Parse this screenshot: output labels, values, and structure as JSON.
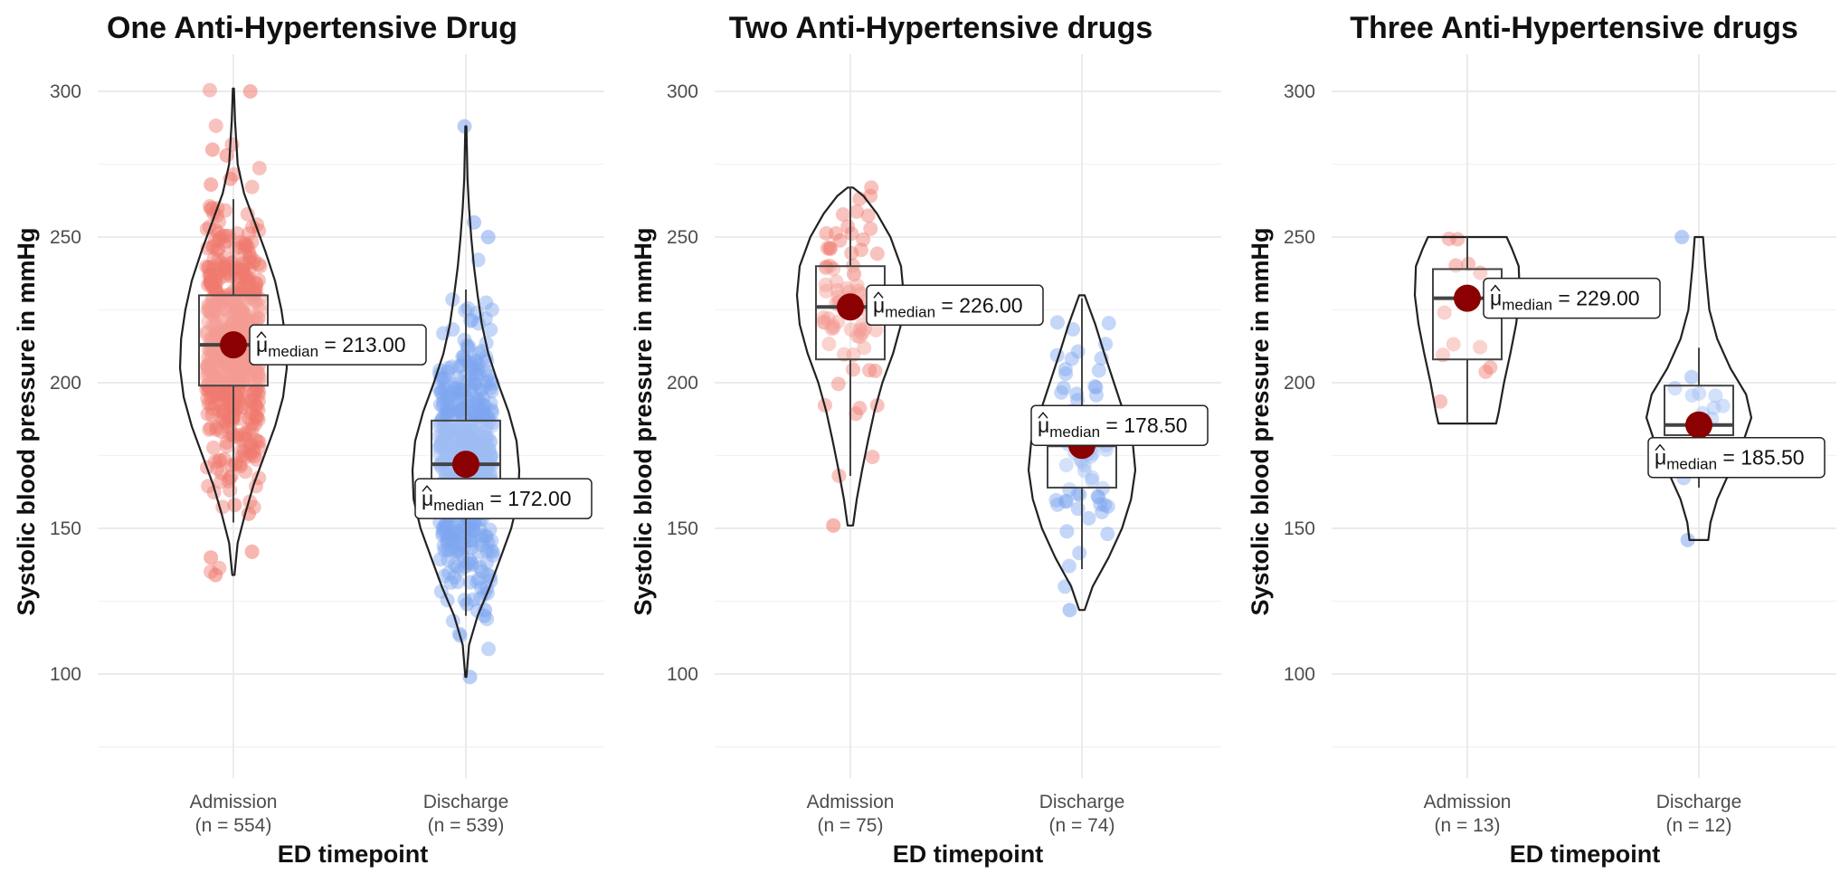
{
  "chart_data": [
    {
      "type": "violin-box-scatter",
      "title": "One Anti-Hypertensive Drug",
      "xlabel": "ED timepoint",
      "ylabel": "Systolic blood pressure in mmHg",
      "ylim": [
        75,
        310
      ],
      "yticks": [
        100,
        150,
        200,
        250,
        300
      ],
      "grid": true,
      "groups": [
        {
          "name": "Admission",
          "n_label": "(n = 554)",
          "color": "#F07A6E",
          "median": 213,
          "q1": 199,
          "q3": 230,
          "wlo": 152,
          "whi": 263,
          "min": 134,
          "max": 301,
          "violin": [
            [
              134,
              0.02
            ],
            [
              145,
              0.08
            ],
            [
              155,
              0.22
            ],
            [
              165,
              0.38
            ],
            [
              175,
              0.58
            ],
            [
              185,
              0.78
            ],
            [
              195,
              0.93
            ],
            [
              205,
              1.0
            ],
            [
              215,
              0.98
            ],
            [
              225,
              0.9
            ],
            [
              235,
              0.78
            ],
            [
              245,
              0.6
            ],
            [
              255,
              0.4
            ],
            [
              265,
              0.2
            ],
            [
              275,
              0.08
            ],
            [
              290,
              0.03
            ],
            [
              301,
              0.01
            ]
          ],
          "outliers": [
            134,
            140,
            142,
            155,
            158,
            268,
            270,
            278,
            280,
            300
          ],
          "label_stat": "= 213.00"
        },
        {
          "name": "Discharge",
          "n_label": "(n = 539)",
          "color": "#7EA6F0",
          "median": 172,
          "q1": 157,
          "q3": 187,
          "wlo": 120,
          "whi": 232,
          "min": 99,
          "max": 288,
          "violin": [
            [
              99,
              0.01
            ],
            [
              110,
              0.06
            ],
            [
              120,
              0.22
            ],
            [
              130,
              0.45
            ],
            [
              140,
              0.65
            ],
            [
              150,
              0.85
            ],
            [
              160,
              0.98
            ],
            [
              170,
              1.0
            ],
            [
              180,
              0.95
            ],
            [
              190,
              0.8
            ],
            [
              200,
              0.6
            ],
            [
              210,
              0.42
            ],
            [
              220,
              0.3
            ],
            [
              230,
              0.22
            ],
            [
              240,
              0.15
            ],
            [
              250,
              0.1
            ],
            [
              260,
              0.06
            ],
            [
              270,
              0.03
            ],
            [
              288,
              0.01
            ]
          ],
          "outliers": [
            99,
            120,
            122,
            124,
            250,
            255,
            288
          ],
          "label_stat": "= 172.00"
        }
      ]
    },
    {
      "type": "violin-box-scatter",
      "title": "Two Anti-Hypertensive drugs",
      "xlabel": "ED timepoint",
      "ylabel": "Systolic blood pressure in mmHg",
      "ylim": [
        75,
        310
      ],
      "yticks": [
        100,
        150,
        200,
        250,
        300
      ],
      "grid": true,
      "groups": [
        {
          "name": "Admission",
          "n_label": "(n = 75)",
          "color": "#F07A6E",
          "median": 226,
          "q1": 208,
          "q3": 240,
          "wlo": 168,
          "whi": 267,
          "min": 151,
          "max": 267,
          "violin": [
            [
              151,
              0.05
            ],
            [
              160,
              0.12
            ],
            [
              170,
              0.22
            ],
            [
              180,
              0.33
            ],
            [
              190,
              0.45
            ],
            [
              200,
              0.6
            ],
            [
              210,
              0.8
            ],
            [
              220,
              0.95
            ],
            [
              230,
              1.0
            ],
            [
              240,
              0.95
            ],
            [
              250,
              0.75
            ],
            [
              258,
              0.5
            ],
            [
              264,
              0.25
            ],
            [
              267,
              0.05
            ]
          ],
          "outliers": [
            151
          ],
          "label_stat": "= 226.00"
        },
        {
          "name": "Discharge",
          "n_label": "(n = 74)",
          "color": "#7EA6F0",
          "median": 178.5,
          "q1": 164,
          "q3": 189,
          "wlo": 136,
          "whi": 229,
          "min": 122,
          "max": 230,
          "violin": [
            [
              122,
              0.05
            ],
            [
              130,
              0.2
            ],
            [
              140,
              0.5
            ],
            [
              150,
              0.75
            ],
            [
              160,
              0.92
            ],
            [
              170,
              1.0
            ],
            [
              180,
              0.95
            ],
            [
              190,
              0.78
            ],
            [
              200,
              0.6
            ],
            [
              210,
              0.42
            ],
            [
              220,
              0.25
            ],
            [
              230,
              0.05
            ]
          ],
          "outliers": [
            122
          ],
          "label_stat": "= 178.50"
        }
      ]
    },
    {
      "type": "violin-box-scatter",
      "title": "Three Anti-Hypertensive drugs",
      "xlabel": "ED timepoint",
      "ylabel": "Systolic blood pressure in mmHg",
      "ylim": [
        75,
        310
      ],
      "yticks": [
        100,
        150,
        200,
        250,
        300
      ],
      "grid": true,
      "groups": [
        {
          "name": "Admission",
          "n_label": "(n = 13)",
          "color": "#F07A6E",
          "median": 229,
          "q1": 208,
          "q3": 239,
          "wlo": 186,
          "whi": 250,
          "min": 186,
          "max": 250,
          "violin": [
            [
              186,
              0.55
            ],
            [
              190,
              0.6
            ],
            [
              200,
              0.7
            ],
            [
              210,
              0.82
            ],
            [
              220,
              0.93
            ],
            [
              230,
              1.0
            ],
            [
              240,
              0.98
            ],
            [
              246,
              0.85
            ],
            [
              250,
              0.75
            ]
          ],
          "outliers": [],
          "label_stat": "= 229.00"
        },
        {
          "name": "Discharge",
          "n_label": "(n = 12)",
          "color": "#7EA6F0",
          "median": 185.5,
          "q1": 182,
          "q3": 199,
          "wlo": 164,
          "whi": 212,
          "min": 146,
          "max": 250,
          "violin": [
            [
              146,
              0.18
            ],
            [
              152,
              0.22
            ],
            [
              160,
              0.35
            ],
            [
              170,
              0.6
            ],
            [
              180,
              0.85
            ],
            [
              188,
              1.0
            ],
            [
              196,
              0.9
            ],
            [
              205,
              0.6
            ],
            [
              215,
              0.35
            ],
            [
              225,
              0.2
            ],
            [
              240,
              0.12
            ],
            [
              250,
              0.08
            ]
          ],
          "outliers": [
            146,
            250
          ],
          "label_stat": "= 185.50"
        }
      ]
    }
  ],
  "stat_symbol": "μ",
  "stat_subscript": "median",
  "colors": {
    "median_point": "#8B0000",
    "grid": "#ebebeb",
    "axis_text": "#4d4d4d"
  }
}
